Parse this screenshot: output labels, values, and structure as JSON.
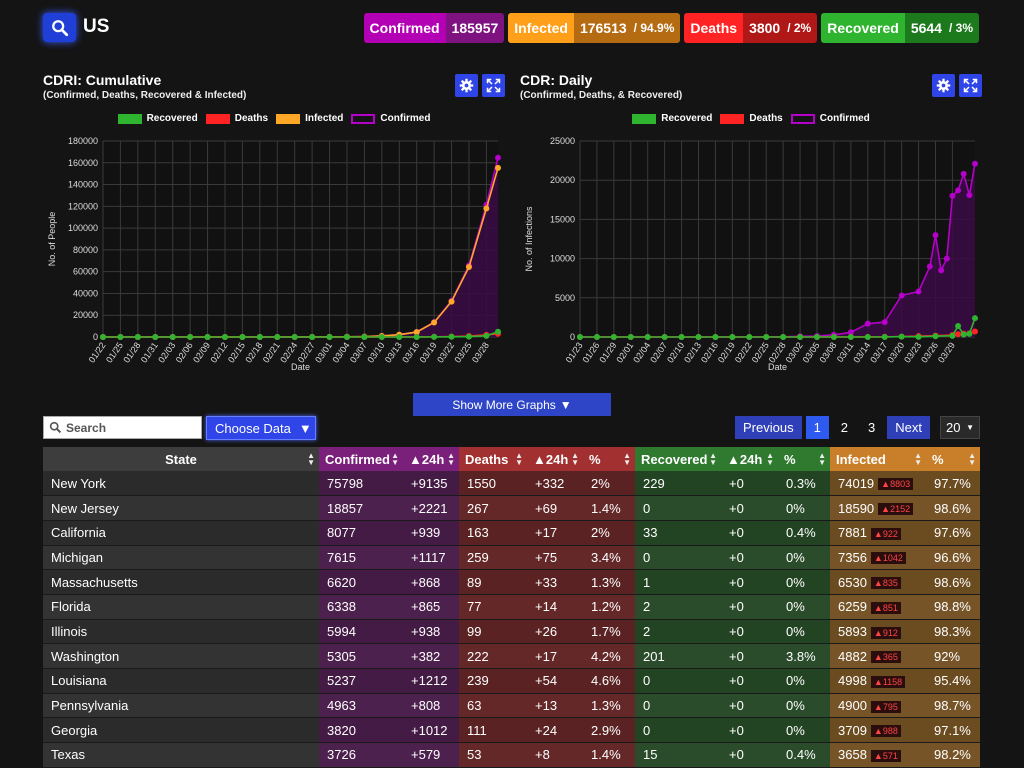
{
  "header": {
    "country": "US",
    "stats": {
      "confirmed": {
        "label": "Confirmed",
        "value": "185957"
      },
      "infected": {
        "label": "Infected",
        "value": "176513",
        "pct": "/ 94.9%"
      },
      "deaths": {
        "label": "Deaths",
        "value": "3800",
        "pct": "/ 2%"
      },
      "recovered": {
        "label": "Recovered",
        "value": "5644",
        "pct": "/ 3%"
      }
    }
  },
  "charts": {
    "colors": {
      "recovered": "#2fb42f",
      "deaths": "#ff2323",
      "infected": "#ffa726",
      "confirmed": "#b400c8"
    },
    "cumulative": {
      "title": "CDRI: Cumulative",
      "subtitle": "(Confirmed, Deaths, Recovered & Infected)",
      "legend": [
        "Recovered",
        "Deaths",
        "Infected",
        "Confirmed"
      ]
    },
    "daily": {
      "title": "CDR: Daily",
      "subtitle": "(Confirmed, Deaths, & Recovered)",
      "legend": [
        "Recovered",
        "Deaths",
        "Confirmed"
      ]
    }
  },
  "chart_data": [
    {
      "type": "line",
      "title": "CDRI: Cumulative",
      "subtitle": "(Confirmed, Deaths, Recovered & Infected)",
      "xlabel": "Date",
      "ylabel": "No. of People",
      "ylim": [
        0,
        180000
      ],
      "yticks": [
        0,
        20000,
        40000,
        60000,
        80000,
        100000,
        120000,
        140000,
        160000,
        180000
      ],
      "xticks": [
        "01/22",
        "01/25",
        "01/28",
        "01/31",
        "02/03",
        "02/06",
        "02/09",
        "02/12",
        "02/15",
        "02/18",
        "02/21",
        "02/24",
        "02/27",
        "03/01",
        "03/04",
        "03/07",
        "03/10",
        "03/13",
        "03/16",
        "03/19",
        "03/22",
        "03/25",
        "03/28"
      ],
      "legend_position": "top",
      "series": [
        {
          "name": "Confirmed",
          "points": [
            [
              0,
              1
            ],
            [
              3,
              5
            ],
            [
              6,
              5
            ],
            [
              9,
              7
            ],
            [
              12,
              11
            ],
            [
              15,
              12
            ],
            [
              18,
              12
            ],
            [
              21,
              13
            ],
            [
              24,
              15
            ],
            [
              27,
              15
            ],
            [
              30,
              15
            ],
            [
              33,
              51
            ],
            [
              36,
              59
            ],
            [
              39,
              68
            ],
            [
              42,
              217
            ],
            [
              45,
              402
            ],
            [
              48,
              994
            ],
            [
              51,
              2179
            ],
            [
              54,
              4661
            ],
            [
              57,
              13677
            ],
            [
              60,
              33276
            ],
            [
              63,
              65778
            ],
            [
              66,
              121478
            ],
            [
              68,
              164620
            ]
          ]
        },
        {
          "name": "Infected",
          "points": [
            [
              0,
              1
            ],
            [
              3,
              5
            ],
            [
              6,
              5
            ],
            [
              9,
              7
            ],
            [
              12,
              11
            ],
            [
              15,
              12
            ],
            [
              18,
              12
            ],
            [
              21,
              13
            ],
            [
              24,
              15
            ],
            [
              27,
              15
            ],
            [
              30,
              15
            ],
            [
              33,
              51
            ],
            [
              36,
              59
            ],
            [
              39,
              68
            ],
            [
              42,
              217
            ],
            [
              45,
              400
            ],
            [
              48,
              970
            ],
            [
              51,
              2100
            ],
            [
              54,
              4500
            ],
            [
              57,
              13300
            ],
            [
              60,
              32500
            ],
            [
              63,
              64300
            ],
            [
              66,
              118000
            ],
            [
              68,
              155300
            ]
          ]
        },
        {
          "name": "Deaths",
          "points": [
            [
              0,
              0
            ],
            [
              3,
              0
            ],
            [
              6,
              0
            ],
            [
              9,
              0
            ],
            [
              12,
              0
            ],
            [
              15,
              0
            ],
            [
              18,
              0
            ],
            [
              21,
              0
            ],
            [
              24,
              0
            ],
            [
              27,
              0
            ],
            [
              30,
              0
            ],
            [
              33,
              0
            ],
            [
              36,
              0
            ],
            [
              39,
              6
            ],
            [
              42,
              11
            ],
            [
              45,
              19
            ],
            [
              48,
              31
            ],
            [
              51,
              57
            ],
            [
              54,
              86
            ],
            [
              57,
              200
            ],
            [
              60,
              417
            ],
            [
              63,
              942
            ],
            [
              66,
              2000
            ],
            [
              68,
              2860
            ]
          ]
        },
        {
          "name": "Recovered",
          "points": [
            [
              0,
              0
            ],
            [
              3,
              0
            ],
            [
              6,
              0
            ],
            [
              9,
              0
            ],
            [
              12,
              0
            ],
            [
              15,
              0
            ],
            [
              18,
              0
            ],
            [
              21,
              0
            ],
            [
              24,
              0
            ],
            [
              27,
              0
            ],
            [
              30,
              0
            ],
            [
              33,
              0
            ],
            [
              36,
              0
            ],
            [
              39,
              7
            ],
            [
              42,
              7
            ],
            [
              45,
              8
            ],
            [
              48,
              8
            ],
            [
              51,
              12
            ],
            [
              54,
              17
            ],
            [
              57,
              108
            ],
            [
              60,
              178
            ],
            [
              63,
              361
            ],
            [
              66,
              1072
            ],
            [
              68,
              4800
            ]
          ]
        }
      ]
    },
    {
      "type": "line",
      "title": "CDR: Daily",
      "subtitle": "(Confirmed, Deaths, & Recovered)",
      "xlabel": "Date",
      "ylabel": "No. of Infections",
      "ylim": [
        0,
        25000
      ],
      "yticks": [
        0,
        5000,
        10000,
        15000,
        20000,
        25000
      ],
      "xticks": [
        "01/23",
        "01/26",
        "01/29",
        "02/01",
        "02/04",
        "02/07",
        "02/10",
        "02/13",
        "02/16",
        "02/19",
        "02/22",
        "02/25",
        "02/28",
        "03/02",
        "03/05",
        "03/08",
        "03/11",
        "03/14",
        "03/17",
        "03/20",
        "03/23",
        "03/26",
        "03/29"
      ],
      "legend_position": "top",
      "series": [
        {
          "name": "Confirmed",
          "points": [
            [
              0,
              1
            ],
            [
              3,
              0
            ],
            [
              6,
              0
            ],
            [
              9,
              2
            ],
            [
              12,
              0
            ],
            [
              15,
              0
            ],
            [
              18,
              0
            ],
            [
              21,
              1
            ],
            [
              24,
              0
            ],
            [
              27,
              0
            ],
            [
              30,
              0
            ],
            [
              33,
              0
            ],
            [
              36,
              20
            ],
            [
              39,
              90
            ],
            [
              42,
              120
            ],
            [
              45,
              270
            ],
            [
              48,
              600
            ],
            [
              51,
              1700
            ],
            [
              54,
              1900
            ],
            [
              57,
              5300
            ],
            [
              60,
              5800
            ],
            [
              62,
              9000
            ],
            [
              63,
              13000
            ],
            [
              64,
              8500
            ],
            [
              65,
              10000
            ],
            [
              66,
              18000
            ],
            [
              67,
              18700
            ],
            [
              68,
              20800
            ],
            [
              69,
              18100
            ],
            [
              70,
              22100
            ]
          ]
        },
        {
          "name": "Deaths",
          "points": [
            [
              0,
              0
            ],
            [
              3,
              0
            ],
            [
              6,
              0
            ],
            [
              9,
              0
            ],
            [
              12,
              0
            ],
            [
              15,
              0
            ],
            [
              18,
              0
            ],
            [
              21,
              0
            ],
            [
              24,
              0
            ],
            [
              27,
              0
            ],
            [
              30,
              0
            ],
            [
              33,
              0
            ],
            [
              36,
              0
            ],
            [
              39,
              0
            ],
            [
              42,
              3
            ],
            [
              45,
              8
            ],
            [
              48,
              11
            ],
            [
              51,
              15
            ],
            [
              54,
              28
            ],
            [
              57,
              50
            ],
            [
              60,
              120
            ],
            [
              63,
              170
            ],
            [
              66,
              260
            ],
            [
              67,
              350
            ],
            [
              68,
              430
            ],
            [
              69,
              470
            ],
            [
              70,
              700
            ]
          ]
        },
        {
          "name": "Recovered",
          "points": [
            [
              0,
              0
            ],
            [
              3,
              0
            ],
            [
              6,
              0
            ],
            [
              9,
              0
            ],
            [
              12,
              0
            ],
            [
              15,
              0
            ],
            [
              18,
              0
            ],
            [
              21,
              0
            ],
            [
              24,
              0
            ],
            [
              27,
              0
            ],
            [
              30,
              0
            ],
            [
              33,
              0
            ],
            [
              36,
              0
            ],
            [
              39,
              0
            ],
            [
              42,
              0
            ],
            [
              45,
              0
            ],
            [
              48,
              0
            ],
            [
              51,
              5
            ],
            [
              54,
              5
            ],
            [
              57,
              50
            ],
            [
              60,
              20
            ],
            [
              63,
              100
            ],
            [
              66,
              150
            ],
            [
              67,
              1400
            ],
            [
              68,
              300
            ],
            [
              69,
              400
            ],
            [
              70,
              2400
            ]
          ]
        }
      ]
    }
  ],
  "controls": {
    "show_more": "Show More Graphs",
    "search_placeholder": "Search",
    "choose_data": "Choose Data",
    "pager": {
      "previous": "Previous",
      "pages": [
        "1",
        "2",
        "3"
      ],
      "next": "Next",
      "per_page": "20"
    }
  },
  "table": {
    "headers": [
      "State",
      "Confirmed",
      "▲24h",
      "Deaths",
      "▲24h",
      "%",
      "Recovered",
      "▲24h",
      "%",
      "Infected",
      "%"
    ],
    "rows": [
      [
        "New York",
        "75798",
        "+9135",
        "1550",
        "+332",
        "2%",
        "229",
        "+0",
        "0.3%",
        "74019",
        "▲8803",
        "97.7%"
      ],
      [
        "New Jersey",
        "18857",
        "+2221",
        "267",
        "+69",
        "1.4%",
        "0",
        "+0",
        "0%",
        "18590",
        "▲2152",
        "98.6%"
      ],
      [
        "California",
        "8077",
        "+939",
        "163",
        "+17",
        "2%",
        "33",
        "+0",
        "0.4%",
        "7881",
        "▲922",
        "97.6%"
      ],
      [
        "Michigan",
        "7615",
        "+1117",
        "259",
        "+75",
        "3.4%",
        "0",
        "+0",
        "0%",
        "7356",
        "▲1042",
        "96.6%"
      ],
      [
        "Massachusetts",
        "6620",
        "+868",
        "89",
        "+33",
        "1.3%",
        "1",
        "+0",
        "0%",
        "6530",
        "▲835",
        "98.6%"
      ],
      [
        "Florida",
        "6338",
        "+865",
        "77",
        "+14",
        "1.2%",
        "2",
        "+0",
        "0%",
        "6259",
        "▲851",
        "98.8%"
      ],
      [
        "Illinois",
        "5994",
        "+938",
        "99",
        "+26",
        "1.7%",
        "2",
        "+0",
        "0%",
        "5893",
        "▲912",
        "98.3%"
      ],
      [
        "Washington",
        "5305",
        "+382",
        "222",
        "+17",
        "4.2%",
        "201",
        "+0",
        "3.8%",
        "4882",
        "▲365",
        "92%"
      ],
      [
        "Louisiana",
        "5237",
        "+1212",
        "239",
        "+54",
        "4.6%",
        "0",
        "+0",
        "0%",
        "4998",
        "▲1158",
        "95.4%"
      ],
      [
        "Pennsylvania",
        "4963",
        "+808",
        "63",
        "+13",
        "1.3%",
        "0",
        "+0",
        "0%",
        "4900",
        "▲795",
        "98.7%"
      ],
      [
        "Georgia",
        "3820",
        "+1012",
        "111",
        "+24",
        "2.9%",
        "0",
        "+0",
        "0%",
        "3709",
        "▲988",
        "97.1%"
      ],
      [
        "Texas",
        "3726",
        "+579",
        "53",
        "+8",
        "1.4%",
        "15",
        "+0",
        "0.4%",
        "3658",
        "▲571",
        "98.2%"
      ]
    ]
  }
}
